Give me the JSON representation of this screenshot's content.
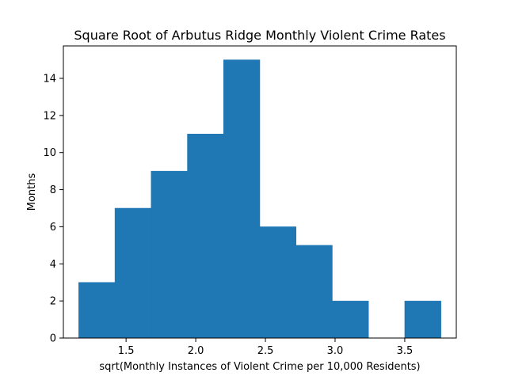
{
  "chart_data": {
    "type": "bar",
    "title": "Square Root of Arbutus Ridge Monthly Violent Crime Rates",
    "xlabel": "sqrt(Monthly Instances of Violent Crime per 10,000 Residents)",
    "ylabel": "Months",
    "bin_edges": [
      1.16,
      1.42,
      1.68,
      1.94,
      2.2,
      2.46,
      2.72,
      2.98,
      3.24,
      3.5,
      3.76
    ],
    "values": [
      3,
      7,
      9,
      11,
      15,
      6,
      5,
      2,
      0,
      2
    ],
    "xlim": [
      1.05,
      3.87
    ],
    "ylim": [
      0,
      15.75
    ],
    "xticks": [
      1.5,
      2.0,
      2.5,
      3.0,
      3.5
    ],
    "xtick_labels": [
      "1.5",
      "2.0",
      "2.5",
      "3.0",
      "3.5"
    ],
    "yticks": [
      0,
      2,
      4,
      6,
      8,
      10,
      12,
      14
    ],
    "ytick_labels": [
      "0",
      "2",
      "4",
      "6",
      "8",
      "10",
      "12",
      "14"
    ],
    "grid": false,
    "bar_color": "#1f77b4",
    "edge_color": "#1f77b4"
  }
}
